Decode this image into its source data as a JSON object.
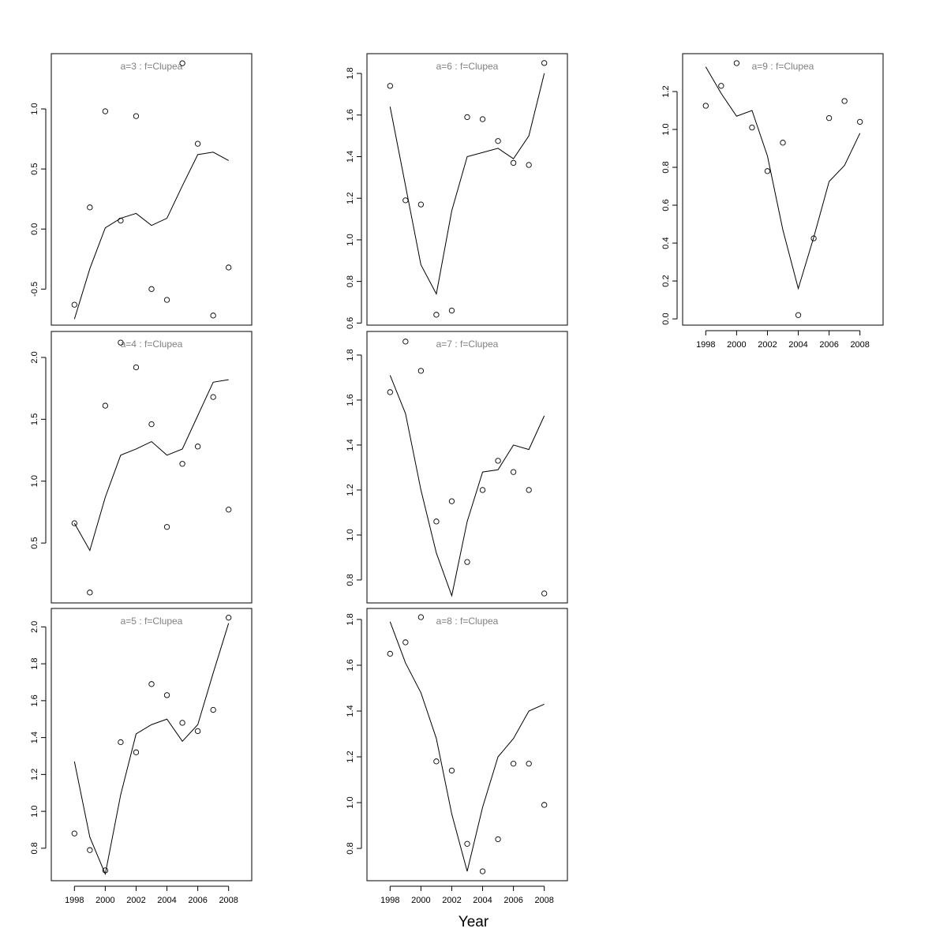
{
  "chart_data": [
    {
      "type": "line",
      "title": "a=3  :  f=Clupea",
      "x": [
        1998,
        1999,
        2000,
        2001,
        2002,
        2003,
        2004,
        2005,
        2006,
        2007,
        2008
      ],
      "ylim": [
        -0.8,
        1.46
      ],
      "yticks": [
        -0.5,
        0.0,
        0.5,
        1.0
      ],
      "xticks": [],
      "series": [
        {
          "kind": "points",
          "values": [
            -0.63,
            0.18,
            0.98,
            0.07,
            0.94,
            -0.5,
            -0.59,
            1.38,
            0.71,
            -0.72,
            -0.32
          ]
        },
        {
          "kind": "line",
          "values": [
            -0.75,
            -0.33,
            0.01,
            0.09,
            0.13,
            0.03,
            0.09,
            0.36,
            0.62,
            0.64,
            0.57
          ]
        }
      ]
    },
    {
      "type": "line",
      "title": "a=4  :  f=Clupea",
      "x": [
        1998,
        1999,
        2000,
        2001,
        2002,
        2003,
        2004,
        2005,
        2006,
        2007,
        2008
      ],
      "ylim": [
        0.016,
        2.21
      ],
      "yticks": [
        0.5,
        1.0,
        1.5,
        2.0
      ],
      "xticks": [],
      "series": [
        {
          "kind": "points",
          "values": [
            0.66,
            0.1,
            1.61,
            2.12,
            1.92,
            1.46,
            0.63,
            1.14,
            1.28,
            1.68,
            0.77
          ]
        },
        {
          "kind": "line",
          "values": [
            0.66,
            0.44,
            0.87,
            1.21,
            1.26,
            1.32,
            1.21,
            1.26,
            1.53,
            1.8,
            1.82
          ]
        }
      ]
    },
    {
      "type": "line",
      "title": "a=5  :  f=Clupea",
      "x": [
        1998,
        1999,
        2000,
        2001,
        2002,
        2003,
        2004,
        2005,
        2006,
        2007,
        2008
      ],
      "ylim": [
        0.624,
        2.1
      ],
      "yticks": [
        0.8,
        1.0,
        1.2,
        1.4,
        1.6,
        1.8,
        2.0
      ],
      "xticks": [
        1998,
        2000,
        2002,
        2004,
        2006,
        2008
      ],
      "series": [
        {
          "kind": "points",
          "values": [
            0.88,
            0.79,
            0.68,
            1.375,
            1.32,
            1.69,
            1.63,
            1.48,
            1.435,
            1.55,
            2.05
          ]
        },
        {
          "kind": "line",
          "values": [
            1.27,
            0.86,
            0.66,
            1.09,
            1.42,
            1.47,
            1.5,
            1.38,
            1.47,
            1.75,
            2.02
          ]
        }
      ]
    },
    {
      "type": "line",
      "title": "a=6  :  f=Clupea",
      "x": [
        1998,
        1999,
        2000,
        2001,
        2002,
        2003,
        2004,
        2005,
        2006,
        2007,
        2008
      ],
      "ylim": [
        0.59,
        1.895
      ],
      "yticks": [
        0.6,
        0.8,
        1.0,
        1.2,
        1.4,
        1.6,
        1.8
      ],
      "xticks": [],
      "series": [
        {
          "kind": "points",
          "values": [
            1.74,
            1.19,
            1.17,
            0.64,
            0.66,
            1.59,
            1.58,
            1.475,
            1.37,
            1.36,
            1.85
          ]
        },
        {
          "kind": "line",
          "values": [
            1.64,
            1.26,
            0.88,
            0.74,
            1.14,
            1.4,
            1.42,
            1.44,
            1.39,
            1.5,
            1.8
          ]
        }
      ]
    },
    {
      "type": "line",
      "title": "a=7  :  f=Clupea",
      "x": [
        1998,
        1999,
        2000,
        2001,
        2002,
        2003,
        2004,
        2005,
        2006,
        2007,
        2008
      ],
      "ylim": [
        0.698,
        1.905
      ],
      "yticks": [
        0.8,
        1.0,
        1.2,
        1.4,
        1.6,
        1.8
      ],
      "xticks": [],
      "series": [
        {
          "kind": "points",
          "values": [
            1.635,
            1.86,
            1.73,
            1.06,
            1.15,
            0.88,
            1.2,
            1.33,
            1.28,
            1.2,
            0.74
          ]
        },
        {
          "kind": "line",
          "values": [
            1.71,
            1.54,
            1.2,
            0.92,
            0.73,
            1.06,
            1.28,
            1.29,
            1.4,
            1.38,
            1.53
          ]
        }
      ]
    },
    {
      "type": "line",
      "title": "a=8  :  f=Clupea",
      "x": [
        1998,
        1999,
        2000,
        2001,
        2002,
        2003,
        2004,
        2005,
        2006,
        2007,
        2008
      ],
      "ylim": [
        0.659,
        1.848
      ],
      "yticks": [
        0.8,
        1.0,
        1.2,
        1.4,
        1.6,
        1.8
      ],
      "xticks": [
        1998,
        2000,
        2002,
        2004,
        2006,
        2008
      ],
      "series": [
        {
          "kind": "points",
          "values": [
            1.65,
            1.7,
            1.81,
            1.18,
            1.14,
            0.82,
            0.7,
            0.84,
            1.17,
            1.17,
            0.99
          ]
        },
        {
          "kind": "line",
          "values": [
            1.79,
            1.61,
            1.48,
            1.28,
            0.95,
            0.7,
            0.98,
            1.2,
            1.28,
            1.4,
            1.43
          ]
        }
      ]
    },
    {
      "type": "line",
      "title": "a=9  :  f=Clupea",
      "x": [
        1998,
        1999,
        2000,
        2001,
        2002,
        2003,
        2004,
        2005,
        2006,
        2007,
        2008
      ],
      "ylim": [
        -0.033,
        1.4
      ],
      "yticks": [
        0.0,
        0.2,
        0.4,
        0.6,
        0.8,
        1.0,
        1.2
      ],
      "xticks": [
        1998,
        2000,
        2002,
        2004,
        2006,
        2008
      ],
      "series": [
        {
          "kind": "points",
          "values": [
            1.125,
            1.23,
            1.35,
            1.01,
            0.78,
            0.93,
            0.02,
            0.425,
            1.06,
            1.15,
            1.04
          ]
        },
        {
          "kind": "line",
          "values": [
            1.33,
            1.19,
            1.07,
            1.1,
            0.86,
            0.47,
            0.16,
            0.43,
            0.725,
            0.81,
            0.98
          ]
        }
      ]
    }
  ],
  "xlabel": "Year",
  "xlim": [
    1996.5,
    2009.5
  ],
  "colors": {
    "title": "#808080",
    "line": "#000000"
  }
}
